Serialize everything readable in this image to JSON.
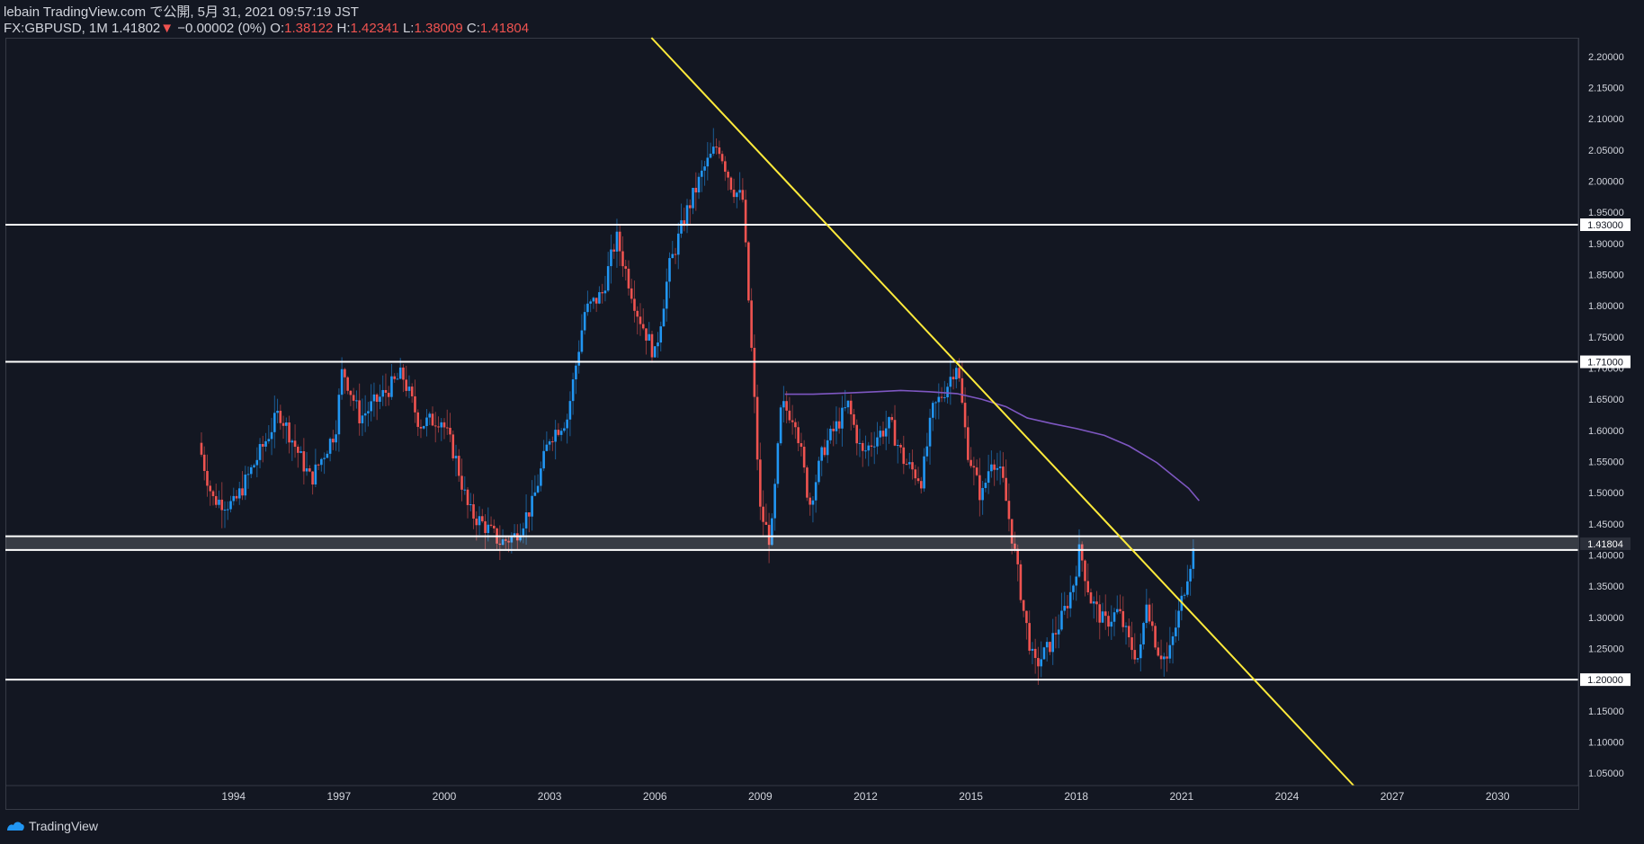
{
  "header": {
    "line1": "lebain TradingView.com で公開, 5月 31, 2021 09:57:19 JST",
    "symbol": "FX:GBPUSD, 1M",
    "price": "1.41802",
    "arrow": "▼",
    "change": "−0.00002 (0%)",
    "o_label": "O:",
    "o_value": "1.38122",
    "h_label": "H:",
    "h_value": "1.42341",
    "l_label": "L:",
    "l_value": "1.38009",
    "c_label": "C:",
    "c_value": "1.41804"
  },
  "footer": {
    "brand": "TradingView",
    "logo_icon": "tradingview-logo-icon"
  },
  "colors": {
    "background": "#131722",
    "up": "#2196f3",
    "down": "#ef5350",
    "trendline": "#ffeb3b",
    "ma": "#7e57c2",
    "level": "#ffffff",
    "text": "#d1d4dc"
  },
  "chart_data": {
    "type": "candlestick",
    "title": "FX:GBPUSD, 1M",
    "x_axis": {
      "type": "time",
      "min": 1987.5,
      "max": 2032.3,
      "ticks": [
        "1994",
        "1997",
        "2000",
        "2003",
        "2006",
        "2009",
        "2012",
        "2015",
        "2018",
        "2021",
        "2024",
        "2027",
        "2030"
      ]
    },
    "y_axis": {
      "min": 1.03,
      "max": 2.23,
      "position": "right",
      "ticks": [
        "2.20000",
        "2.15000",
        "2.10000",
        "2.05000",
        "2.00000",
        "1.95000",
        "1.90000",
        "1.85000",
        "1.80000",
        "1.75000",
        "1.70000",
        "1.65000",
        "1.60000",
        "1.55000",
        "1.50000",
        "1.45000",
        "1.40000",
        "1.35000",
        "1.30000",
        "1.25000",
        "1.20000",
        "1.15000",
        "1.10000",
        "1.05000"
      ]
    },
    "price_series": {
      "name": "GBPUSD",
      "anchors": [
        [
          "1993.0",
          1.58
        ],
        [
          "1993.4",
          1.49
        ],
        [
          "1994.0",
          1.48
        ],
        [
          "1994.8",
          1.57
        ],
        [
          "1995.3",
          1.63
        ],
        [
          "1996.2",
          1.52
        ],
        [
          "1996.9",
          1.6
        ],
        [
          "1997.1",
          1.7
        ],
        [
          "1997.6",
          1.62
        ],
        [
          "1998.3",
          1.66
        ],
        [
          "1998.8",
          1.69
        ],
        [
          "1999.3",
          1.61
        ],
        [
          "1999.9",
          1.62
        ],
        [
          "2000.3",
          1.56
        ],
        [
          "2000.7",
          1.47
        ],
        [
          "2001.1",
          1.45
        ],
        [
          "2001.6",
          1.42
        ],
        [
          "2002.0",
          1.43
        ],
        [
          "2002.5",
          1.48
        ],
        [
          "2003.0",
          1.59
        ],
        [
          "2003.5",
          1.62
        ],
        [
          "2004.0",
          1.79
        ],
        [
          "2004.5",
          1.82
        ],
        [
          "2004.9",
          1.91
        ],
        [
          "2005.5",
          1.79
        ],
        [
          "2006.0",
          1.72
        ],
        [
          "2006.4",
          1.86
        ],
        [
          "2006.9",
          1.95
        ],
        [
          "2007.4",
          2.02
        ],
        [
          "2007.8",
          2.06
        ],
        [
          "2008.2",
          1.99
        ],
        [
          "2008.5",
          1.97
        ],
        [
          "2008.8",
          1.68
        ],
        [
          "2009.0",
          1.47
        ],
        [
          "2009.3",
          1.42
        ],
        [
          "2009.6",
          1.64
        ],
        [
          "2010.0",
          1.62
        ],
        [
          "2010.4",
          1.48
        ],
        [
          "2010.8",
          1.57
        ],
        [
          "2011.2",
          1.61
        ],
        [
          "2011.5",
          1.64
        ],
        [
          "2011.9",
          1.56
        ],
        [
          "2012.3",
          1.59
        ],
        [
          "2012.7",
          1.61
        ],
        [
          "2013.1",
          1.55
        ],
        [
          "2013.6",
          1.52
        ],
        [
          "2013.9",
          1.63
        ],
        [
          "2014.3",
          1.67
        ],
        [
          "2014.6",
          1.71
        ],
        [
          "2014.9",
          1.57
        ],
        [
          "2015.3",
          1.49
        ],
        [
          "2015.6",
          1.56
        ],
        [
          "2015.9",
          1.52
        ],
        [
          "2016.2",
          1.42
        ],
        [
          "2016.5",
          1.31
        ],
        [
          "2016.8",
          1.22
        ],
        [
          "2017.2",
          1.25
        ],
        [
          "2017.6",
          1.3
        ],
        [
          "2017.9",
          1.35
        ],
        [
          "2018.1",
          1.41
        ],
        [
          "2018.4",
          1.33
        ],
        [
          "2018.8",
          1.29
        ],
        [
          "2019.2",
          1.31
        ],
        [
          "2019.5",
          1.26
        ],
        [
          "2019.8",
          1.23
        ],
        [
          "2020.0",
          1.33
        ],
        [
          "2020.3",
          1.25
        ],
        [
          "2020.6",
          1.23
        ],
        [
          "2020.9",
          1.3
        ],
        [
          "2021.2",
          1.38
        ],
        [
          "2021.4",
          1.418
        ]
      ]
    },
    "moving_average": {
      "points": [
        [
          "2009.7",
          1.658
        ],
        [
          "2010.5",
          1.658
        ],
        [
          "2011.5",
          1.66
        ],
        [
          "2012.3",
          1.662
        ],
        [
          "2013.0",
          1.664
        ],
        [
          "2013.8",
          1.662
        ],
        [
          "2014.6",
          1.659
        ],
        [
          "2015.3",
          1.65
        ],
        [
          "2016.0",
          1.638
        ],
        [
          "2016.6",
          1.62
        ],
        [
          "2017.3",
          1.611
        ],
        [
          "2018.0",
          1.603
        ],
        [
          "2018.8",
          1.592
        ],
        [
          "2019.5",
          1.575
        ],
        [
          "2020.3",
          1.548
        ],
        [
          "2021.2",
          1.507
        ],
        [
          "2021.5",
          1.487
        ]
      ]
    },
    "trendline": {
      "from": [
        "2005.9",
        2.23
      ],
      "to": [
        "2025.9",
        1.03
      ]
    },
    "horizontal_levels": [
      {
        "value": 1.93,
        "label": "1.93000"
      },
      {
        "value": 1.71,
        "label": "1.71000"
      },
      {
        "value": 1.43,
        "label": ""
      },
      {
        "value": 1.408,
        "label": ""
      },
      {
        "value": 1.2,
        "label": "1.20000"
      }
    ],
    "last_price_label": "1.41804",
    "last_price": 1.41804
  }
}
